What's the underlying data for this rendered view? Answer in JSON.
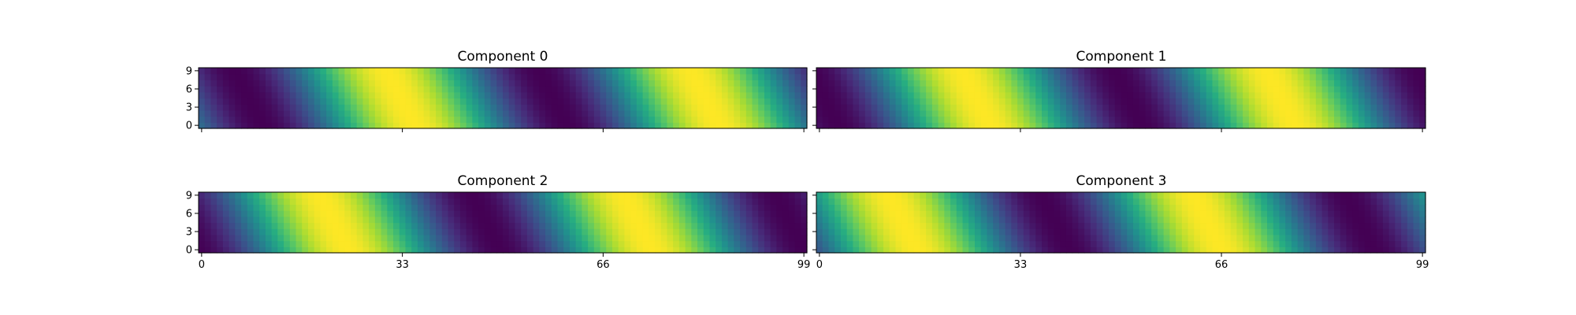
{
  "chart_data": [
    {
      "type": "heatmap",
      "title": "Component 0",
      "x_range": [
        0,
        99
      ],
      "y_range": [
        0,
        9
      ],
      "xticks": [
        0,
        33,
        66,
        99
      ],
      "yticks": [
        0,
        3,
        6,
        9
      ],
      "show_xtick_labels": false,
      "colormap": "viridis",
      "pattern": {
        "form": "0.5 + 0.5*cos(2*pi*(x + 0.5*y - shift)/period)",
        "period": 50,
        "shift": 35
      }
    },
    {
      "type": "heatmap",
      "title": "Component 1",
      "x_range": [
        0,
        99
      ],
      "y_range": [
        0,
        9
      ],
      "xticks": [
        0,
        33,
        66,
        99
      ],
      "yticks": [
        0,
        3,
        6,
        9
      ],
      "show_xtick_labels": false,
      "colormap": "viridis",
      "pattern": {
        "form": "0.5 + 0.5*cos(2*pi*(x + 0.5*y - shift)/period)",
        "period": 50,
        "shift": 28
      }
    },
    {
      "type": "heatmap",
      "title": "Component 2",
      "x_range": [
        0,
        99
      ],
      "y_range": [
        0,
        9
      ],
      "xticks": [
        0,
        33,
        66,
        99
      ],
      "yticks": [
        0,
        3,
        6,
        9
      ],
      "show_xtick_labels": true,
      "colormap": "viridis",
      "pattern": {
        "form": "0.5 + 0.5*cos(2*pi*(x + 0.5*y - shift)/period)",
        "period": 50,
        "shift": 24
      }
    },
    {
      "type": "heatmap",
      "title": "Component 3",
      "x_range": [
        0,
        99
      ],
      "y_range": [
        0,
        9
      ],
      "xticks": [
        0,
        33,
        66,
        99
      ],
      "yticks": [
        0,
        3,
        6,
        9
      ],
      "show_xtick_labels": true,
      "colormap": "viridis",
      "pattern": {
        "form": "0.5 + 0.5*cos(2*pi*(x + 0.5*y - shift)/period)",
        "period": 50,
        "shift": 16
      }
    }
  ],
  "colors": {
    "viridis_low": "#440154",
    "viridis_mid": "#21918c",
    "viridis_high": "#fde725"
  }
}
